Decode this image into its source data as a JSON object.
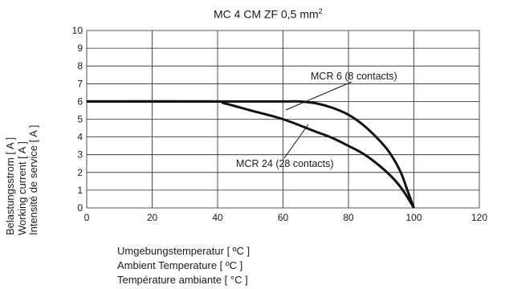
{
  "chart_data": {
    "type": "line",
    "title": "MC 4 CM ZF 0,5 mm",
    "title_superscript": "2",
    "xlabel": [
      "Umgebungstemperatur [ ºC ]",
      "Ambient Temperature [ ºC ]",
      "Température ambiante [ °C ]"
    ],
    "ylabel": [
      "Belastungsstrom [ A ]",
      "Working current [ A ]",
      "Intensité de service [ A ]"
    ],
    "xlim": [
      0,
      120
    ],
    "ylim": [
      0,
      10
    ],
    "xticks": [
      0,
      20,
      40,
      60,
      80,
      100,
      120
    ],
    "yticks": [
      0,
      1,
      2,
      3,
      4,
      5,
      6,
      7,
      8,
      9,
      10
    ],
    "grid": true,
    "series": [
      {
        "name": "MCR 6 (8 contacts)",
        "x": [
          0,
          40,
          60,
          65,
          70,
          75,
          80,
          85,
          90,
          93,
          96,
          98,
          100
        ],
        "y": [
          6,
          6,
          6,
          6,
          5.9,
          5.65,
          5.25,
          4.6,
          3.7,
          3.0,
          2.0,
          1.0,
          0
        ]
      },
      {
        "name": "MCR 24 (28 contacts)",
        "x": [
          0,
          38,
          42,
          50,
          60,
          70,
          75,
          80,
          85,
          90,
          94,
          97,
          100
        ],
        "y": [
          6,
          6,
          5.9,
          5.5,
          5.0,
          4.3,
          3.95,
          3.5,
          3.0,
          2.3,
          1.6,
          0.9,
          0
        ]
      }
    ],
    "annotations": [
      {
        "text": "MCR 6 (8 contacts)",
        "series": 0
      },
      {
        "text": "MCR 24 (28 contacts)",
        "series": 1
      }
    ]
  }
}
